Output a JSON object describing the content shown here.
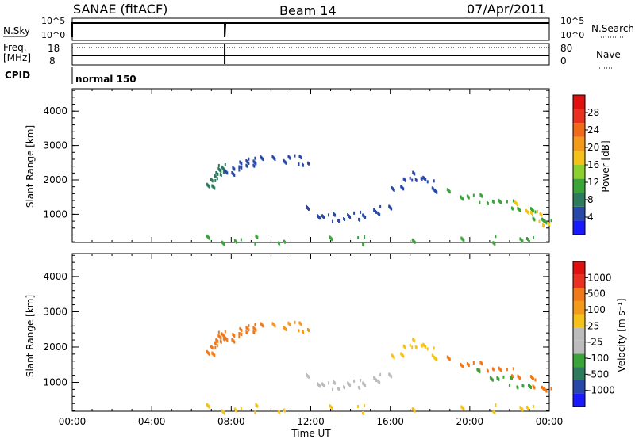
{
  "header": {
    "station": "SANAE (fitACF)",
    "beam": "Beam 14",
    "date": "07/Apr/2011"
  },
  "top_panels": {
    "nsky_label": "N.Sky",
    "nsky_ticks": [
      "10^5",
      "10^0"
    ],
    "nsearch_ticks": [
      "10^5",
      "10^0"
    ],
    "nsearch_label": "N.Search",
    "freq_label": "Freq.",
    "freq_unit": "[MHz]",
    "freq_ticks": [
      "18",
      "8"
    ],
    "nave_ticks": [
      "80",
      "0"
    ],
    "nave_label": "Nave",
    "cpid_label": "CPID",
    "cpid_value": "normal 150",
    "gap_time_hours": 7.67
  },
  "axes": {
    "xlabel": "Time UT",
    "ylabel": "Slant Range [km]",
    "x_tick_labels": [
      "00:00",
      "04:00",
      "08:00",
      "12:00",
      "16:00",
      "20:00",
      "00:00"
    ],
    "x_range_hours": [
      0,
      24
    ],
    "y_range_km": [
      180,
      4650
    ],
    "y_ticks": [
      "4000",
      "3000",
      "2000",
      "1000"
    ]
  },
  "colorbars": {
    "power": {
      "label": "Power [dB]",
      "ticks": [
        "28",
        "24",
        "20",
        "16",
        "12",
        "8",
        "4"
      ],
      "colors": [
        "#1a1aff",
        "#2848a8",
        "#2e7a5c",
        "#3aa43a",
        "#8ccf2e",
        "#f4c21a",
        "#f49a1a",
        "#f06a1a",
        "#ea3020",
        "#e01010"
      ]
    },
    "velocity": {
      "label": "Velocity  [m s⁻¹]",
      "ticks": [
        "1000",
        "500",
        "100",
        "25",
        "-25",
        "-100",
        "-500",
        "-1000"
      ],
      "colors": [
        "#1a1aff",
        "#2848a8",
        "#2e7a5c",
        "#3aa43a",
        "#bcbcbc",
        "#bcbcbc",
        "#f4c21a",
        "#f49a1a",
        "#f07a1a",
        "#ea3020",
        "#e01010"
      ]
    }
  },
  "chart_data": [
    {
      "type": "scatter",
      "title": "Power",
      "xlabel": "Time UT",
      "ylabel": "Slant Range [km]",
      "xlim_hours": [
        0,
        24
      ],
      "ylim_km": [
        180,
        4650
      ],
      "series": [
        {
          "t": [
            6.9,
            7.0,
            7.1,
            7.2,
            7.3,
            7.4,
            7.5,
            7.6
          ],
          "r": [
            1800,
            1920,
            2040,
            2140,
            2230,
            2300,
            2370,
            2420
          ],
          "level": 2
        },
        {
          "t": [
            7.8,
            8.0,
            8.2,
            8.4,
            8.6,
            8.8,
            9.0,
            9.2,
            9.4
          ],
          "r": [
            2200,
            2300,
            2380,
            2450,
            2490,
            2530,
            2560,
            2590,
            2620
          ],
          "level": 1
        },
        {
          "t": [
            10.2,
            10.6,
            11.0,
            11.4,
            11.7
          ],
          "r": [
            2600,
            2650,
            2700,
            2620,
            2560
          ],
          "level": 1
        },
        {
          "t": [
            11.9,
            12.3,
            12.7,
            13.1,
            13.5,
            13.9,
            14.3,
            14.7,
            15.1,
            15.5,
            15.9
          ],
          "r": [
            1150,
            1050,
            980,
            950,
            940,
            960,
            990,
            1020,
            1080,
            1150,
            1250
          ],
          "level": 1
        },
        {
          "t": [
            16.2,
            16.5,
            16.8,
            17.1,
            17.4,
            17.7,
            18.0,
            18.3
          ],
          "r": [
            1700,
            1900,
            2050,
            2150,
            2120,
            2050,
            1900,
            1750
          ],
          "level": 1
        },
        {
          "t": [
            19.0,
            19.5,
            20.0,
            20.5,
            21.0,
            21.5,
            22.0,
            22.5,
            23.0,
            23.3,
            23.6,
            23.9
          ],
          "r": [
            1650,
            1600,
            1550,
            1500,
            1450,
            1380,
            1320,
            1220,
            1120,
            1000,
            880,
            750
          ],
          "level": 3
        },
        {
          "t": [
            22.4,
            22.8,
            23.2,
            23.5,
            23.8
          ],
          "r": [
            1280,
            1200,
            1080,
            950,
            800
          ],
          "level": 5
        },
        {
          "t": [
            6.9,
            7.5,
            8.3,
            9.2,
            10.5,
            13.0,
            14.5,
            17.2,
            19.5,
            21.3,
            22.5,
            23.0
          ],
          "r": [
            300,
            280,
            260,
            300,
            280,
            310,
            270,
            300,
            260,
            290,
            310,
            250
          ],
          "level": 3
        }
      ]
    },
    {
      "type": "scatter",
      "title": "Velocity",
      "xlabel": "Time UT",
      "ylabel": "Slant Range [km]",
      "xlim_hours": [
        0,
        24
      ],
      "ylim_km": [
        180,
        4650
      ],
      "series": [
        {
          "t": [
            6.9,
            7.0,
            7.1,
            7.2,
            7.3,
            7.4,
            7.5,
            7.6
          ],
          "r": [
            1800,
            1920,
            2040,
            2140,
            2230,
            2300,
            2370,
            2420
          ],
          "level": 8
        },
        {
          "t": [
            7.8,
            8.0,
            8.2,
            8.4,
            8.6,
            8.8,
            9.0,
            9.2,
            9.4
          ],
          "r": [
            2200,
            2300,
            2380,
            2450,
            2490,
            2530,
            2560,
            2590,
            2620
          ],
          "level": 8
        },
        {
          "t": [
            10.2,
            10.6,
            11.0,
            11.4,
            11.7
          ],
          "r": [
            2600,
            2650,
            2700,
            2620,
            2560
          ],
          "level": 7
        },
        {
          "t": [
            11.9,
            12.3,
            12.7,
            13.1,
            13.5,
            13.9,
            14.3,
            14.7,
            15.1,
            15.5,
            15.9
          ],
          "r": [
            1150,
            1050,
            980,
            950,
            940,
            960,
            990,
            1020,
            1080,
            1150,
            1250
          ],
          "level": 5
        },
        {
          "t": [
            16.2,
            16.5,
            16.8,
            17.1,
            17.4,
            17.7,
            18.0,
            18.3
          ],
          "r": [
            1700,
            1900,
            2050,
            2150,
            2120,
            2050,
            1900,
            1750
          ],
          "level": 6
        },
        {
          "t": [
            19.0,
            19.5,
            20.0,
            20.5,
            21.0,
            21.5,
            22.0,
            22.5,
            23.0,
            23.3,
            23.6,
            23.9
          ],
          "r": [
            1650,
            1600,
            1550,
            1500,
            1450,
            1380,
            1320,
            1220,
            1120,
            1000,
            880,
            750
          ],
          "level": 8
        },
        {
          "t": [
            20.5,
            21.0,
            21.5,
            22.0,
            22.5,
            23.0
          ],
          "r": [
            1300,
            1220,
            1150,
            1080,
            980,
            900
          ],
          "level": 3
        },
        {
          "t": [
            6.9,
            7.5,
            8.3,
            9.2,
            10.5,
            13.0,
            14.5,
            17.2,
            19.5,
            21.3,
            22.5,
            23.0
          ],
          "r": [
            300,
            280,
            260,
            300,
            280,
            310,
            270,
            300,
            260,
            290,
            310,
            250
          ],
          "level": 6
        }
      ]
    }
  ]
}
